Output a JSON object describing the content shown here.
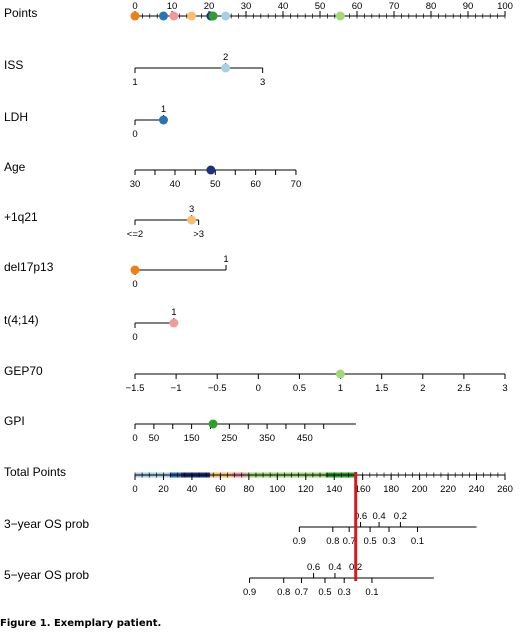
{
  "caption": "Figure 1. Exemplary patient.",
  "colors": {
    "axis": "#000000",
    "marker_line": "#d7191c"
  },
  "chart_data": {
    "type": "nomogram",
    "rows": [
      {
        "key": "points",
        "label": "Points",
        "scale": [
          0,
          100
        ],
        "ticks": [
          {
            "v": 0,
            "label": "0"
          },
          {
            "v": 10,
            "label": "10"
          },
          {
            "v": 20,
            "label": "20"
          },
          {
            "v": 30,
            "label": "30"
          },
          {
            "v": 40,
            "label": "40"
          },
          {
            "v": 50,
            "label": "50"
          },
          {
            "v": 60,
            "label": "60"
          },
          {
            "v": 70,
            "label": "70"
          },
          {
            "v": 80,
            "label": "80"
          },
          {
            "v": 90,
            "label": "90"
          },
          {
            "v": 100,
            "label": "100"
          }
        ],
        "minor_step": 2,
        "dots": [
          {
            "points": 0,
            "color": "#f07f12"
          },
          {
            "points": 7.7,
            "color": "#2b74b3"
          },
          {
            "points": 10.5,
            "color": "#f29a9a"
          },
          {
            "points": 15.3,
            "color": "#f9bf71"
          },
          {
            "points": 20.5,
            "color": "#203080"
          },
          {
            "points": 21.1,
            "color": "#2ca02c"
          },
          {
            "points": 24.5,
            "color": "#a8cfe8"
          },
          {
            "points": 55.5,
            "color": "#a1d878"
          }
        ]
      },
      {
        "key": "iss",
        "label": "ISS",
        "segments": [
          {
            "from": 0,
            "to": 34.5
          }
        ],
        "ticks": [
          {
            "points": 0,
            "label": "1",
            "pos": "below"
          },
          {
            "points": 24.5,
            "label": "2",
            "pos": "above"
          },
          {
            "points": 34.5,
            "label": "3",
            "pos": "below"
          }
        ],
        "dot": {
          "points": 24.5,
          "color": "#a8cfe8"
        }
      },
      {
        "key": "ldh",
        "label": "LDH",
        "segments": [
          {
            "from": 0,
            "to": 7.7
          }
        ],
        "ticks": [
          {
            "points": 0,
            "label": "0",
            "pos": "below"
          },
          {
            "points": 7.7,
            "label": "1",
            "pos": "above"
          }
        ],
        "dot": {
          "points": 7.7,
          "color": "#2b74b3"
        }
      },
      {
        "key": "age",
        "label": "Age",
        "segments": [
          {
            "from": 0,
            "to": 43.5
          }
        ],
        "ticks": [
          {
            "points": 0,
            "label": "30",
            "pos": "below"
          },
          {
            "points": 5.4,
            "label": "",
            "pos": "below"
          },
          {
            "points": 10.8,
            "label": "40",
            "pos": "below"
          },
          {
            "points": 16.3,
            "label": "",
            "pos": "below"
          },
          {
            "points": 21.7,
            "label": "50",
            "pos": "below"
          },
          {
            "points": 27.1,
            "label": "",
            "pos": "below"
          },
          {
            "points": 32.6,
            "label": "60",
            "pos": "below"
          },
          {
            "points": 38.0,
            "label": "",
            "pos": "below"
          },
          {
            "points": 43.5,
            "label": "70",
            "pos": "below"
          }
        ],
        "dot": {
          "points": 20.5,
          "color": "#203080"
        }
      },
      {
        "key": "q21",
        "label": "+1q21",
        "segments": [
          {
            "from": 0,
            "to": 17.2
          }
        ],
        "ticks": [
          {
            "points": 0,
            "label": "<=2",
            "pos": "below"
          },
          {
            "points": 15.3,
            "label": "3",
            "pos": "above"
          },
          {
            "points": 17.2,
            "label": ">3",
            "pos": "below"
          }
        ],
        "dot": {
          "points": 15.3,
          "color": "#f9bf71"
        }
      },
      {
        "key": "del17p13",
        "label": "del17p13",
        "segments": [
          {
            "from": 0,
            "to": 24.6
          }
        ],
        "ticks": [
          {
            "points": 0,
            "label": "0",
            "pos": "below"
          },
          {
            "points": 24.6,
            "label": "1",
            "pos": "above"
          }
        ],
        "dot": {
          "points": 0,
          "color": "#f07f12"
        }
      },
      {
        "key": "t414",
        "label": "t(4;14)",
        "segments": [
          {
            "from": 0,
            "to": 10.5
          }
        ],
        "ticks": [
          {
            "points": 0,
            "label": "0",
            "pos": "below"
          },
          {
            "points": 10.5,
            "label": "1",
            "pos": "above"
          }
        ],
        "dot": {
          "points": 10.5,
          "color": "#f29a9a"
        }
      },
      {
        "key": "gep70",
        "label": "GEP70",
        "segments": [
          {
            "from": 0,
            "to": 100
          }
        ],
        "ticks": [
          {
            "points": 0,
            "label": "−1.5",
            "pos": "below"
          },
          {
            "points": 11.11,
            "label": "−1",
            "pos": "below"
          },
          {
            "points": 22.22,
            "label": "−0.5",
            "pos": "below"
          },
          {
            "points": 33.33,
            "label": "0",
            "pos": "below"
          },
          {
            "points": 44.44,
            "label": "0.5",
            "pos": "below"
          },
          {
            "points": 55.56,
            "label": "1",
            "pos": "below"
          },
          {
            "points": 66.67,
            "label": "1.5",
            "pos": "below"
          },
          {
            "points": 77.78,
            "label": "2",
            "pos": "below"
          },
          {
            "points": 88.89,
            "label": "2.5",
            "pos": "below"
          },
          {
            "points": 100,
            "label": "3",
            "pos": "below"
          }
        ],
        "dot": {
          "points": 55.5,
          "color": "#a1d878"
        }
      },
      {
        "key": "gpi",
        "label": "GPI",
        "segments": [
          {
            "from": 0,
            "to": 59.7
          }
        ],
        "ticks": [
          {
            "points": 0,
            "label": "0",
            "pos": "below"
          },
          {
            "points": 5.1,
            "label": "50",
            "pos": "below"
          },
          {
            "points": 10.2,
            "label": "",
            "pos": "below"
          },
          {
            "points": 15.3,
            "label": "150",
            "pos": "below"
          },
          {
            "points": 20.4,
            "label": "",
            "pos": "below"
          },
          {
            "points": 25.5,
            "label": "250",
            "pos": "below"
          },
          {
            "points": 30.6,
            "label": "",
            "pos": "below"
          },
          {
            "points": 35.7,
            "label": "350",
            "pos": "below"
          },
          {
            "points": 40.8,
            "label": "",
            "pos": "below"
          },
          {
            "points": 45.9,
            "label": "450",
            "pos": "below"
          },
          {
            "points": 51.0,
            "label": "",
            "pos": "below"
          }
        ],
        "dot": {
          "points": 21.1,
          "color": "#2ca02c"
        }
      },
      {
        "key": "total",
        "label": "Total Points",
        "scale": [
          0,
          260
        ],
        "ticks": [
          {
            "v": 0,
            "label": "0"
          },
          {
            "v": 20,
            "label": "20"
          },
          {
            "v": 40,
            "label": "40"
          },
          {
            "v": 60,
            "label": "60"
          },
          {
            "v": 80,
            "label": "80"
          },
          {
            "v": 100,
            "label": "100"
          },
          {
            "v": 120,
            "label": "120"
          },
          {
            "v": 140,
            "label": "140"
          },
          {
            "v": 160,
            "label": "160"
          },
          {
            "v": 180,
            "label": "180"
          },
          {
            "v": 200,
            "label": "200"
          },
          {
            "v": 220,
            "label": "220"
          },
          {
            "v": 240,
            "label": "240"
          },
          {
            "v": 260,
            "label": "260"
          }
        ],
        "minor_step": 5,
        "contributions": [
          {
            "from": 0,
            "to": 24.5,
            "color": "#a8cfe8"
          },
          {
            "from": 24.5,
            "to": 32.2,
            "color": "#2b74b3"
          },
          {
            "from": 32.2,
            "to": 52.7,
            "color": "#203080"
          },
          {
            "from": 52.7,
            "to": 68.0,
            "color": "#f9bf71"
          },
          {
            "from": 68.0,
            "to": 78.5,
            "color": "#f29a9a"
          },
          {
            "from": 78.5,
            "to": 134.0,
            "color": "#a1d878"
          },
          {
            "from": 134.0,
            "to": 155.1,
            "color": "#2ca02c"
          }
        ],
        "patient_total": 155.1
      },
      {
        "key": "os3",
        "label": "3−year OS prob",
        "segments": [
          {
            "from": 115.5,
            "to": 240
          }
        ],
        "ticks": [
          {
            "points": 115.5,
            "label": "0.9",
            "pos": "below"
          },
          {
            "points": 139,
            "label": "0.8",
            "pos": "below"
          },
          {
            "points": 150.5,
            "label": "0.7",
            "pos": "below"
          },
          {
            "points": 158.5,
            "label": "0.6",
            "pos": "above"
          },
          {
            "points": 165.2,
            "label": "0.5",
            "pos": "below"
          },
          {
            "points": 171.5,
            "label": "0.4",
            "pos": "above"
          },
          {
            "points": 178.5,
            "label": "0.3",
            "pos": "below"
          },
          {
            "points": 186.5,
            "label": "0.2",
            "pos": "above"
          },
          {
            "points": 198.5,
            "label": "0.1",
            "pos": "below"
          }
        ]
      },
      {
        "key": "os5",
        "label": "5−year OS prob",
        "segments": [
          {
            "from": 80.5,
            "to": 210
          }
        ],
        "ticks": [
          {
            "points": 80.5,
            "label": "0.9",
            "pos": "below"
          },
          {
            "points": 104.5,
            "label": "0.8",
            "pos": "below"
          },
          {
            "points": 117,
            "label": "0.7",
            "pos": "below"
          },
          {
            "points": 125.5,
            "label": "0.6",
            "pos": "above"
          },
          {
            "points": 133.5,
            "label": "0.5",
            "pos": "below"
          },
          {
            "points": 140.5,
            "label": "0.4",
            "pos": "above"
          },
          {
            "points": 147,
            "label": "0.3",
            "pos": "below"
          },
          {
            "points": 155,
            "label": "0.2",
            "pos": "above"
          },
          {
            "points": 166.5,
            "label": "0.1",
            "pos": "below"
          }
        ]
      }
    ]
  }
}
